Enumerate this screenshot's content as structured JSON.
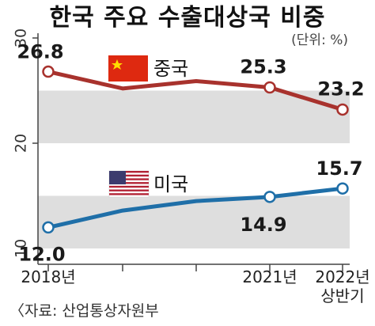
{
  "title": "한국 주요 수출대상국 비중",
  "unit": "(단위: %)",
  "source": "〈자료: 산업통상자원부",
  "chart_data": {
    "type": "line",
    "title": "한국 주요 수출대상국 비중",
    "unit": "(단위: %)",
    "categories": [
      "2018년",
      "",
      "",
      "2021년",
      "2022년 상반기"
    ],
    "x_tick_labels": [
      [
        "2018년"
      ],
      [
        ""
      ],
      [
        ""
      ],
      [
        "2021년"
      ],
      [
        "2022년",
        "상반기"
      ]
    ],
    "ylim": [
      10,
      30
    ],
    "yticks": [
      10,
      20,
      30
    ],
    "shaded_bands": [
      [
        10,
        15
      ],
      [
        20,
        25
      ]
    ],
    "series": [
      {
        "name": "중국",
        "color": "#a8322d",
        "values": [
          26.8,
          25.2,
          25.9,
          25.3,
          23.2
        ],
        "labels": [
          "26.8",
          "",
          "",
          "25.3",
          "23.2"
        ]
      },
      {
        "name": "미국",
        "color": "#1f6fa8",
        "values": [
          12.0,
          13.6,
          14.5,
          14.9,
          15.7
        ],
        "labels": [
          "12.0",
          "",
          "",
          "14.9",
          "15.7"
        ]
      }
    ]
  }
}
